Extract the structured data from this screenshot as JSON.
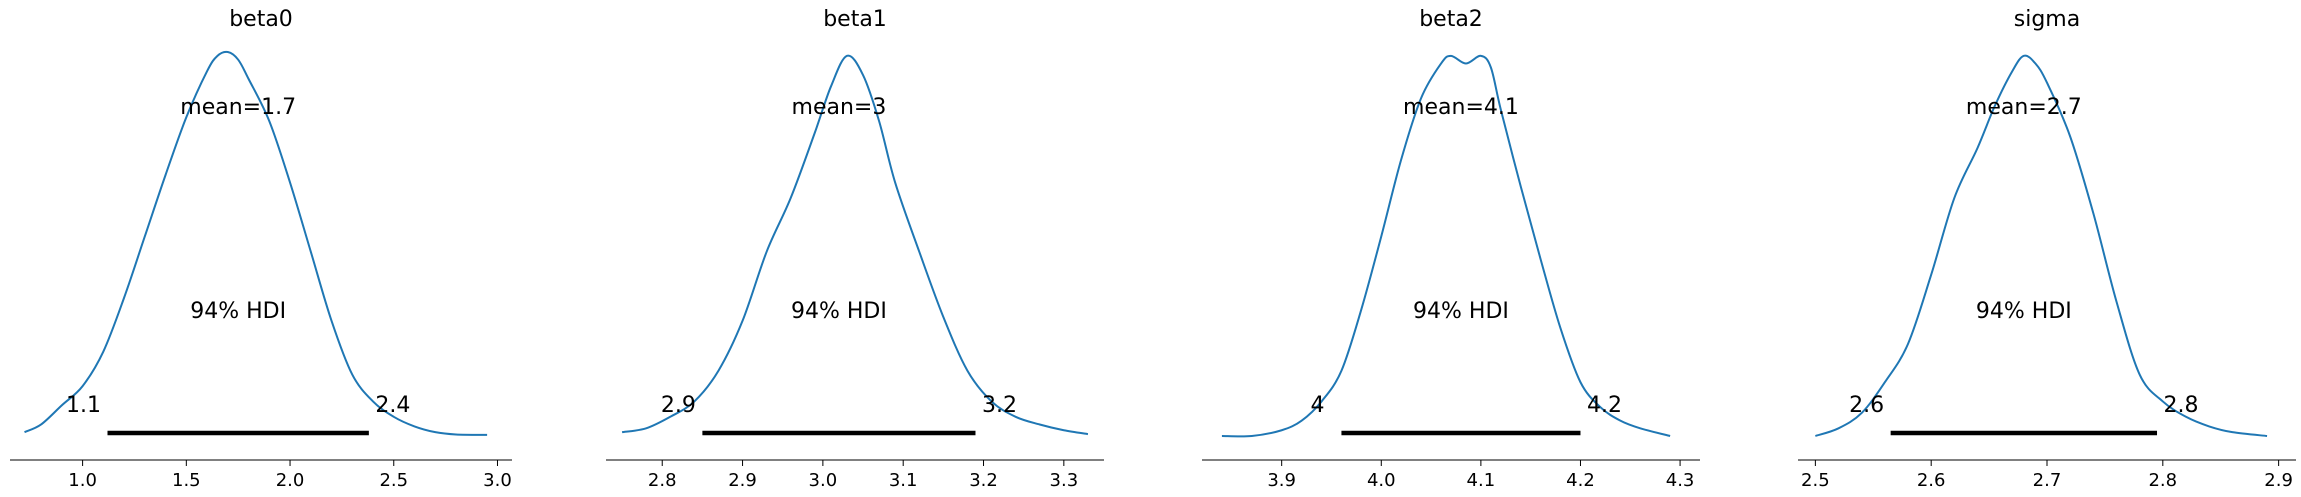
{
  "chart_data": [
    {
      "type": "line",
      "title": "beta0",
      "xlabel": "",
      "ylabel": "",
      "xlim": [
        0.65,
        3.07
      ],
      "xticks": [
        1.0,
        1.5,
        2.0,
        2.5,
        3.0
      ],
      "xtick_labels": [
        "1.0",
        "1.5",
        "2.0",
        "2.5",
        "3.0"
      ],
      "mean_label": "mean=1.7",
      "hdi_label": "94% HDI",
      "hdi": [
        1.12,
        2.38
      ],
      "hdi_low_label": "1.1",
      "hdi_high_label": "2.4",
      "series": [
        {
          "x": [
            0.72,
            0.8,
            0.9,
            1.0,
            1.1,
            1.2,
            1.3,
            1.4,
            1.5,
            1.6,
            1.65,
            1.7,
            1.75,
            1.8,
            1.9,
            2.0,
            2.1,
            2.2,
            2.3,
            2.4,
            2.5,
            2.6,
            2.7,
            2.8,
            2.95
          ],
          "y": [
            0.01,
            0.03,
            0.08,
            0.13,
            0.22,
            0.36,
            0.52,
            0.68,
            0.83,
            0.95,
            0.99,
            1.0,
            0.98,
            0.93,
            0.82,
            0.66,
            0.48,
            0.3,
            0.16,
            0.09,
            0.05,
            0.025,
            0.01,
            0.004,
            0.003
          ]
        }
      ]
    },
    {
      "type": "line",
      "title": "beta1",
      "xlabel": "",
      "ylabel": "",
      "xlim": [
        2.73,
        3.35
      ],
      "xticks": [
        2.8,
        2.9,
        3.0,
        3.1,
        3.2,
        3.3
      ],
      "xtick_labels": [
        "2.8",
        "2.9",
        "3.0",
        "3.1",
        "3.2",
        "3.3"
      ],
      "mean_label": "mean=3",
      "hdi_label": "94% HDI",
      "hdi": [
        2.85,
        3.19
      ],
      "hdi_low_label": "2.9",
      "hdi_high_label": "3.2",
      "series": [
        {
          "x": [
            2.75,
            2.78,
            2.81,
            2.84,
            2.87,
            2.9,
            2.93,
            2.96,
            2.99,
            3.01,
            3.03,
            3.05,
            3.07,
            3.09,
            3.12,
            3.15,
            3.18,
            3.21,
            3.24,
            3.27,
            3.3,
            3.33
          ],
          "y": [
            0.01,
            0.02,
            0.05,
            0.09,
            0.17,
            0.3,
            0.48,
            0.62,
            0.79,
            0.91,
            0.99,
            0.94,
            0.82,
            0.66,
            0.48,
            0.31,
            0.17,
            0.09,
            0.05,
            0.03,
            0.015,
            0.005
          ]
        }
      ]
    },
    {
      "type": "line",
      "title": "beta2",
      "xlabel": "",
      "ylabel": "",
      "xlim": [
        3.82,
        4.32
      ],
      "xticks": [
        3.9,
        4.0,
        4.1,
        4.2,
        4.3
      ],
      "xtick_labels": [
        "3.9",
        "4.0",
        "4.1",
        "4.2",
        "4.3"
      ],
      "mean_label": "mean=4.1",
      "hdi_label": "94% HDI",
      "hdi": [
        3.96,
        4.2
      ],
      "hdi_low_label": "4",
      "hdi_high_label": "4.2",
      "series": [
        {
          "x": [
            3.84,
            3.87,
            3.9,
            3.92,
            3.94,
            3.96,
            3.98,
            4.0,
            4.02,
            4.04,
            4.06,
            4.07,
            4.085,
            4.1,
            4.11,
            4.12,
            4.14,
            4.16,
            4.18,
            4.2,
            4.22,
            4.24,
            4.26,
            4.29
          ],
          "y": [
            0.0,
            0.0,
            0.015,
            0.04,
            0.09,
            0.17,
            0.33,
            0.52,
            0.72,
            0.88,
            0.97,
            0.99,
            0.97,
            0.99,
            0.96,
            0.85,
            0.65,
            0.46,
            0.28,
            0.14,
            0.075,
            0.04,
            0.02,
            0.0
          ]
        }
      ]
    },
    {
      "type": "line",
      "title": "sigma",
      "xlabel": "",
      "ylabel": "",
      "xlim": [
        2.485,
        2.915
      ],
      "xticks": [
        2.5,
        2.6,
        2.7,
        2.8,
        2.9
      ],
      "xtick_labels": [
        "2.5",
        "2.6",
        "2.7",
        "2.8",
        "2.9"
      ],
      "mean_label": "mean=2.7",
      "hdi_label": "94% HDI",
      "hdi": [
        2.565,
        2.795
      ],
      "hdi_low_label": "2.6",
      "hdi_high_label": "2.8",
      "series": [
        {
          "x": [
            2.5,
            2.52,
            2.54,
            2.56,
            2.58,
            2.6,
            2.62,
            2.64,
            2.655,
            2.67,
            2.68,
            2.69,
            2.7,
            2.72,
            2.74,
            2.76,
            2.78,
            2.8,
            2.82,
            2.84,
            2.86,
            2.89
          ],
          "y": [
            0.0,
            0.02,
            0.06,
            0.14,
            0.24,
            0.42,
            0.62,
            0.75,
            0.86,
            0.95,
            0.99,
            0.97,
            0.92,
            0.78,
            0.58,
            0.35,
            0.16,
            0.09,
            0.05,
            0.025,
            0.01,
            0.0
          ]
        }
      ]
    }
  ]
}
